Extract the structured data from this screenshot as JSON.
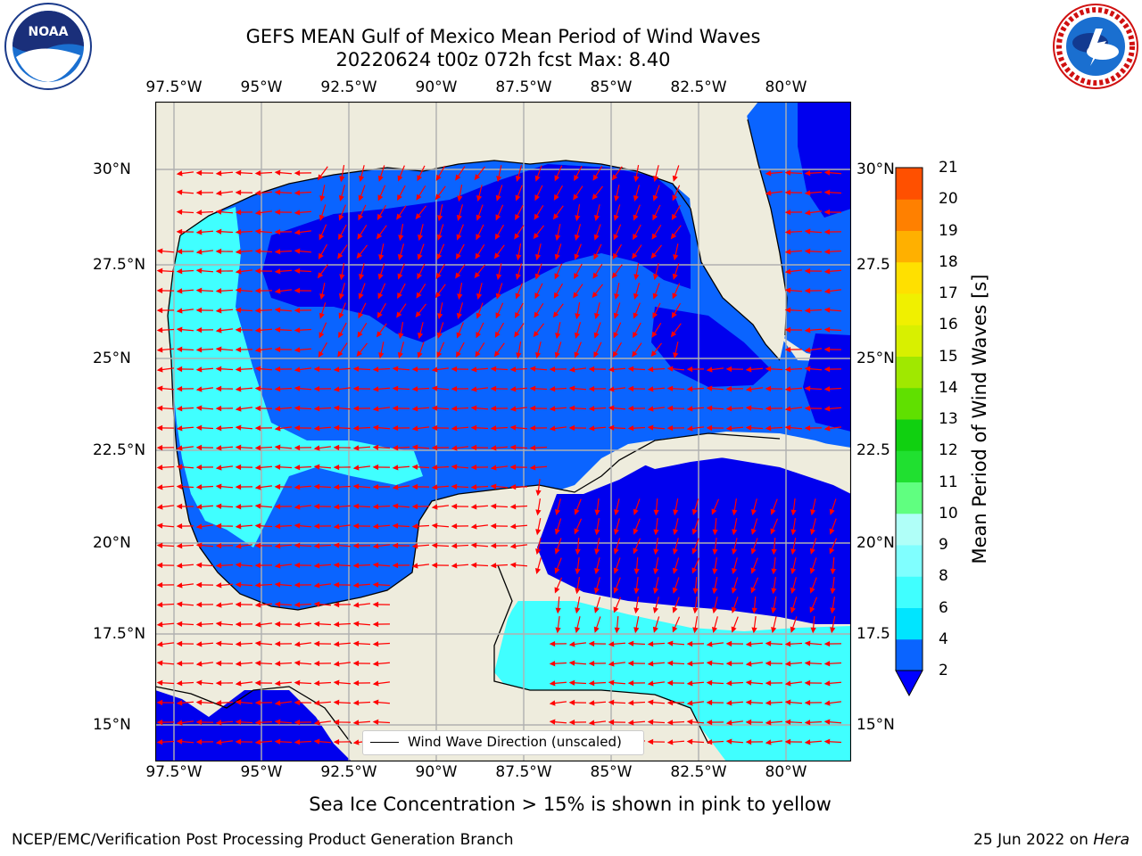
{
  "title_line1": "GEFS MEAN Gulf of Mexico Mean Period of Wind Waves",
  "title_line2": "20220624 t00z 072h fcst   Max: 8.40",
  "logos": {
    "left": "noaa-logo",
    "left_text": "NOAA",
    "right": "nws-logo",
    "right_text": "NATIONAL WEATHER SERVICE"
  },
  "lon_ticks": [
    "97.5°W",
    "95°W",
    "92.5°W",
    "90°W",
    "87.5°W",
    "85°W",
    "82.5°W",
    "80°W"
  ],
  "lat_ticks_left": [
    "30°N",
    "27.5°N",
    "25°N",
    "22.5°N",
    "20°N",
    "17.5°N",
    "15°N"
  ],
  "lat_ticks_right": [
    "30°N",
    "27.5",
    "25°N",
    "22.5",
    "20°N",
    "17.5",
    "15°N"
  ],
  "colorbar": {
    "label": "Mean Period of Wind Waves [s]",
    "tick_labels": [
      "2",
      "4",
      "6",
      "8",
      "9",
      "10",
      "11",
      "12",
      "13",
      "14",
      "15",
      "16",
      "17",
      "18",
      "19",
      "20",
      "21"
    ],
    "colors": [
      "#0a64ff",
      "#00e5ff",
      "#40ffff",
      "#80ffff",
      "#b0fff8",
      "#60ff80",
      "#20e030",
      "#10d010",
      "#60e000",
      "#a0e800",
      "#d8f000",
      "#f0f000",
      "#ffe000",
      "#ffb000",
      "#ff8000",
      "#ff5000",
      "#ff2000",
      "#ff0000"
    ],
    "under_color": "#0000ff"
  },
  "legend_label": "Wind Wave Direction (unscaled)",
  "caption": "Sea Ice Concentration > 15% is shown in pink to yellow",
  "footer_left": "NCEP/EMC/Verification Post Processing Product Generation Branch",
  "footer_right_date": "25 Jun 2022 on ",
  "footer_right_machine": "Hera",
  "colors": {
    "land": "#eeecdd",
    "arrow": "#ff0000",
    "grid": "#b0b0b0",
    "wave_low": "#0000ee",
    "wave_mid": "#0a64ff",
    "wave_high": "#40ffff"
  }
}
